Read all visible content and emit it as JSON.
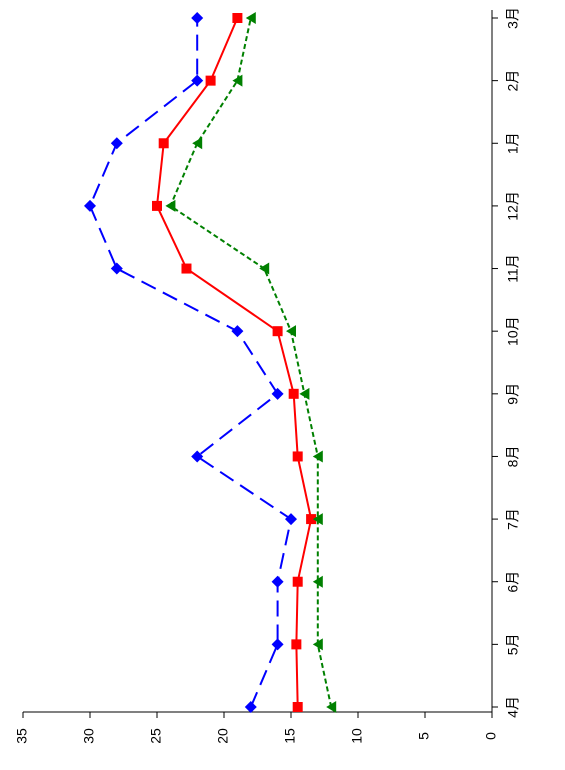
{
  "chart_data": {
    "type": "line",
    "categories": [
      "4月",
      "5月",
      "6月",
      "7月",
      "8月",
      "9月",
      "10月",
      "11月",
      "12月",
      "1月",
      "2月",
      "3月"
    ],
    "series": [
      {
        "color": "#0000ff",
        "marker": "diamond",
        "dash": "long",
        "values": [
          18,
          16,
          16,
          15,
          22,
          16,
          19,
          28,
          30,
          28,
          22,
          22
        ]
      },
      {
        "color": "#ff0000",
        "marker": "square",
        "dash": "solid",
        "values": [
          14.5,
          14.6,
          14.5,
          13.5,
          14.5,
          14.8,
          16,
          22.8,
          25,
          24.5,
          21,
          19
        ]
      },
      {
        "color": "#008000",
        "marker": "triangle",
        "dash": "short",
        "values": [
          12,
          13,
          13,
          13,
          13,
          14,
          15,
          17,
          24,
          22,
          19,
          18
        ]
      }
    ],
    "ylim": [
      0,
      35
    ],
    "yticks": [
      0,
      5,
      10,
      15,
      20,
      25,
      30,
      35
    ],
    "grid": false
  }
}
